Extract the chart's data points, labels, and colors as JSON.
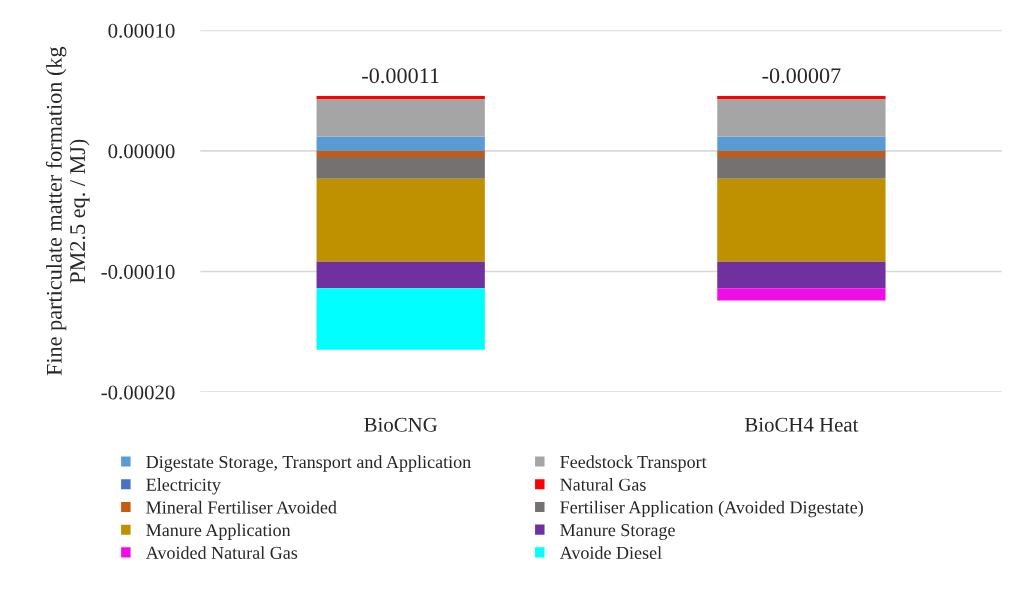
{
  "chart_data": {
    "type": "bar",
    "stacked": true,
    "ylabel": "Fine particulate matter formation (kg PM2.5 eq. / MJ)",
    "categories": [
      "BioCNG",
      "BioCH4 Heat"
    ],
    "series": [
      {
        "name": "Digestate Storage, Transport and Application",
        "color": "#5b9bd5",
        "values": [
          1.2e-05,
          1.2e-05
        ]
      },
      {
        "name": "Feedstock Transport",
        "color": "#a5a5a5",
        "values": [
          3.1e-05,
          3.1e-05
        ]
      },
      {
        "name": "Electricity",
        "color": "#4472c4",
        "values": [
          0,
          0
        ]
      },
      {
        "name": "Natural Gas",
        "color": "#ff0000",
        "values": [
          2.5e-06,
          2.5e-06
        ]
      },
      {
        "name": "Mineral Fertiliser Avoided",
        "color": "#c55a11",
        "values": [
          -5e-06,
          -5e-06
        ]
      },
      {
        "name": "Fertiliser Application (Avoided Digestate)",
        "color": "#767171",
        "values": [
          -1.8e-05,
          -1.8e-05
        ]
      },
      {
        "name": "Manure Application",
        "color": "#bf9000",
        "values": [
          -6.9e-05,
          -6.9e-05
        ]
      },
      {
        "name": "Manure Storage",
        "color": "#7030a0",
        "values": [
          -2.2e-05,
          -2.2e-05
        ]
      },
      {
        "name": "Avoided Natural Gas",
        "color": "#f00ce6",
        "values": [
          0,
          -1e-05
        ]
      },
      {
        "name": "Avoide Diesel",
        "color": "#00ffff",
        "values": [
          -5.1e-05,
          0
        ]
      }
    ],
    "totals": [
      "-0.00011",
      "-0.00007"
    ],
    "ylim": [
      -0.0002,
      0.0001
    ],
    "yticks": [
      {
        "value": 0.0001,
        "label": "0.00010"
      },
      {
        "value": 0,
        "label": "0.00000"
      },
      {
        "value": -0.0001,
        "label": "-0.00010"
      },
      {
        "value": -0.0002,
        "label": "-0.00020"
      }
    ],
    "grid": "y",
    "legend": "bottom"
  }
}
